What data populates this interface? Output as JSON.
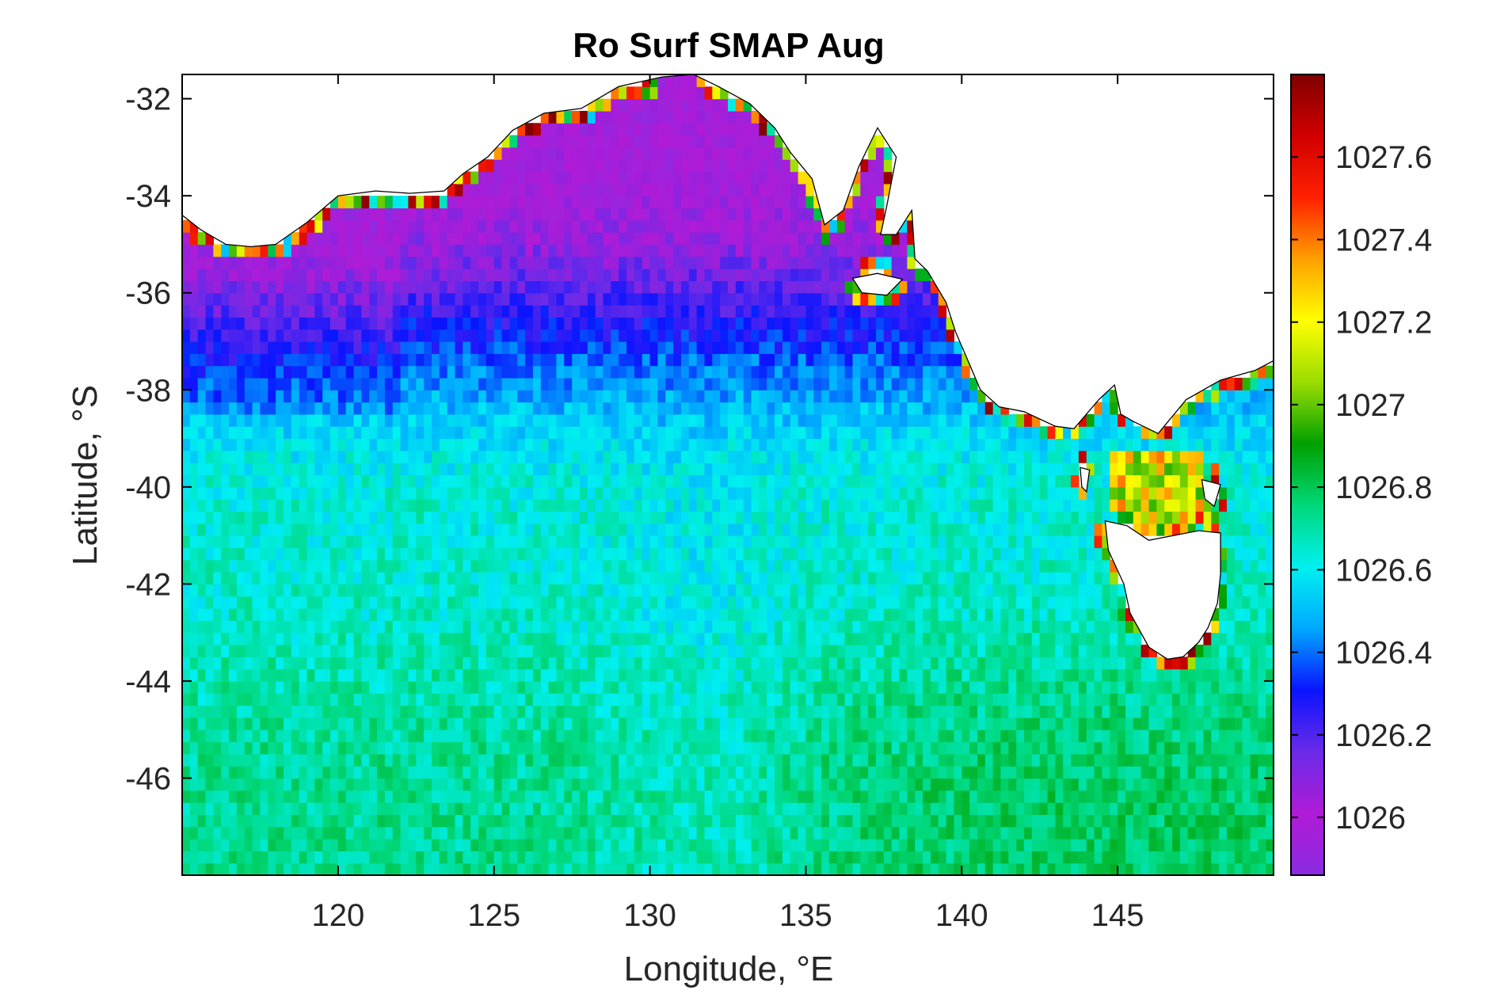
{
  "chart_data": {
    "type": "heatmap",
    "title": "Ro Surf SMAP Aug",
    "xlabel": "Longitude, °E",
    "ylabel": "Latitude, °S",
    "xlim": [
      115,
      150
    ],
    "ylim": [
      -48,
      -31.5
    ],
    "x_ticks": [
      120,
      125,
      130,
      135,
      140,
      145
    ],
    "x_tick_labels": [
      "120",
      "125",
      "130",
      "135",
      "140",
      "145"
    ],
    "y_ticks": [
      -32,
      -34,
      -36,
      -38,
      -40,
      -42,
      -44,
      -46
    ],
    "y_tick_labels": [
      "-32",
      "-34",
      "-36",
      "-38",
      "-40",
      "-42",
      "-44",
      "-46"
    ],
    "colorbar": {
      "range": [
        1025.86,
        1027.8
      ],
      "ticks": [
        1026,
        1026.2,
        1026.4,
        1026.6,
        1026.8,
        1027,
        1027.2,
        1027.4,
        1027.6
      ],
      "tick_labels": [
        "1026",
        "1026.2",
        "1026.4",
        "1026.6",
        "1026.8",
        "1027",
        "1027.2",
        "1027.4",
        "1027.6"
      ],
      "colors": [
        "#8a2be2",
        "#b01bd6",
        "#6a2be8",
        "#0a14ff",
        "#00a8ff",
        "#00f0f0",
        "#00d87a",
        "#00a000",
        "#9adc00",
        "#ffff00",
        "#ffa000",
        "#ff2000",
        "#d00000",
        "#800000"
      ]
    },
    "grid": false,
    "grid_resolution_deg": 0.25,
    "land_color": "#ffffff",
    "coastline_color": "#000000"
  }
}
